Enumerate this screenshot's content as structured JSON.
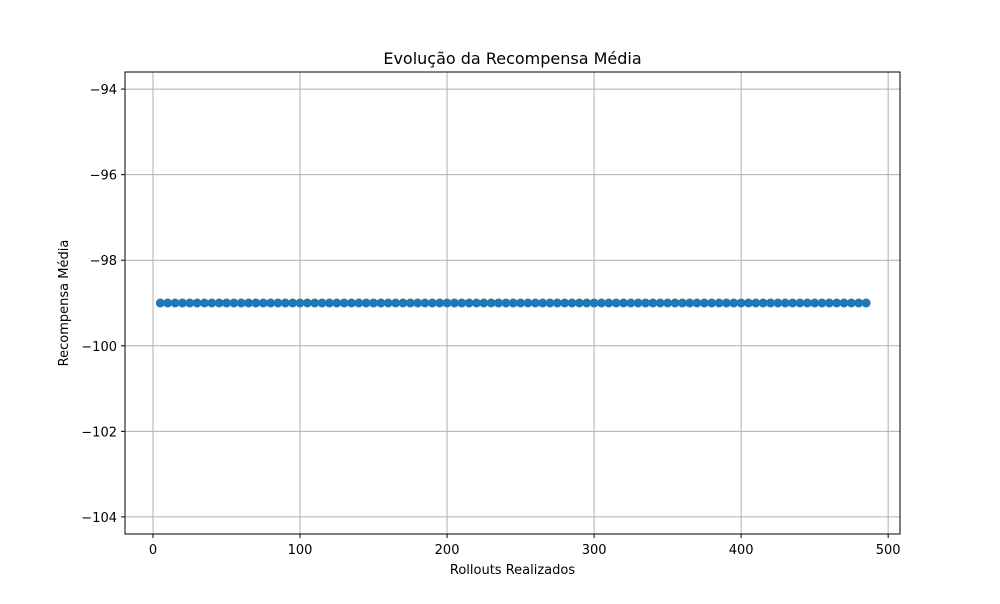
{
  "chart_data": {
    "type": "scatter",
    "title": "Evolução da Recompensa Média",
    "xlabel": "Rollouts Realizados",
    "ylabel": "Recompensa Média",
    "xlim": [
      -19.05,
      508.05
    ],
    "ylim": [
      -104.4,
      -93.6
    ],
    "xticks": [
      0,
      100,
      200,
      300,
      400,
      500
    ],
    "xtick_labels": [
      "0",
      "100",
      "200",
      "300",
      "400",
      "500"
    ],
    "yticks": [
      -94,
      -96,
      -98,
      -100,
      -102,
      -104
    ],
    "ytick_labels": [
      "−94",
      "−96",
      "−98",
      "−100",
      "−102",
      "−104"
    ],
    "grid": true,
    "legend": false,
    "series": [
      {
        "color": "#1f77b4",
        "marker": "o",
        "line": true,
        "x": [
          5,
          10,
          15,
          20,
          25,
          30,
          35,
          40,
          45,
          50,
          55,
          60,
          65,
          70,
          75,
          80,
          85,
          90,
          95,
          100,
          105,
          110,
          115,
          120,
          125,
          130,
          135,
          140,
          145,
          150,
          155,
          160,
          165,
          170,
          175,
          180,
          185,
          190,
          195,
          200,
          205,
          210,
          215,
          220,
          225,
          230,
          235,
          240,
          245,
          250,
          255,
          260,
          265,
          270,
          275,
          280,
          285,
          290,
          295,
          300,
          305,
          310,
          315,
          320,
          325,
          330,
          335,
          340,
          345,
          350,
          355,
          360,
          365,
          370,
          375,
          380,
          385,
          390,
          395,
          400,
          405,
          410,
          415,
          420,
          425,
          430,
          435,
          440,
          445,
          450,
          455,
          460,
          465,
          470,
          475,
          480,
          485
        ],
        "y": [
          -99,
          -99,
          -99,
          -99,
          -99,
          -99,
          -99,
          -99,
          -99,
          -99,
          -99,
          -99,
          -99,
          -99,
          -99,
          -99,
          -99,
          -99,
          -99,
          -99,
          -99,
          -99,
          -99,
          -99,
          -99,
          -99,
          -99,
          -99,
          -99,
          -99,
          -99,
          -99,
          -99,
          -99,
          -99,
          -99,
          -99,
          -99,
          -99,
          -99,
          -99,
          -99,
          -99,
          -99,
          -99,
          -99,
          -99,
          -99,
          -99,
          -99,
          -99,
          -99,
          -99,
          -99,
          -99,
          -99,
          -99,
          -99,
          -99,
          -99,
          -99,
          -99,
          -99,
          -99,
          -99,
          -99,
          -99,
          -99,
          -99,
          -99,
          -99,
          -99,
          -99,
          -99,
          -99,
          -99,
          -99,
          -99,
          -99,
          -99,
          -99,
          -99,
          -99,
          -99,
          -99,
          -99,
          -99,
          -99,
          -99,
          -99,
          -99,
          -99,
          -99,
          -99,
          -99,
          -99,
          -99
        ]
      }
    ]
  }
}
